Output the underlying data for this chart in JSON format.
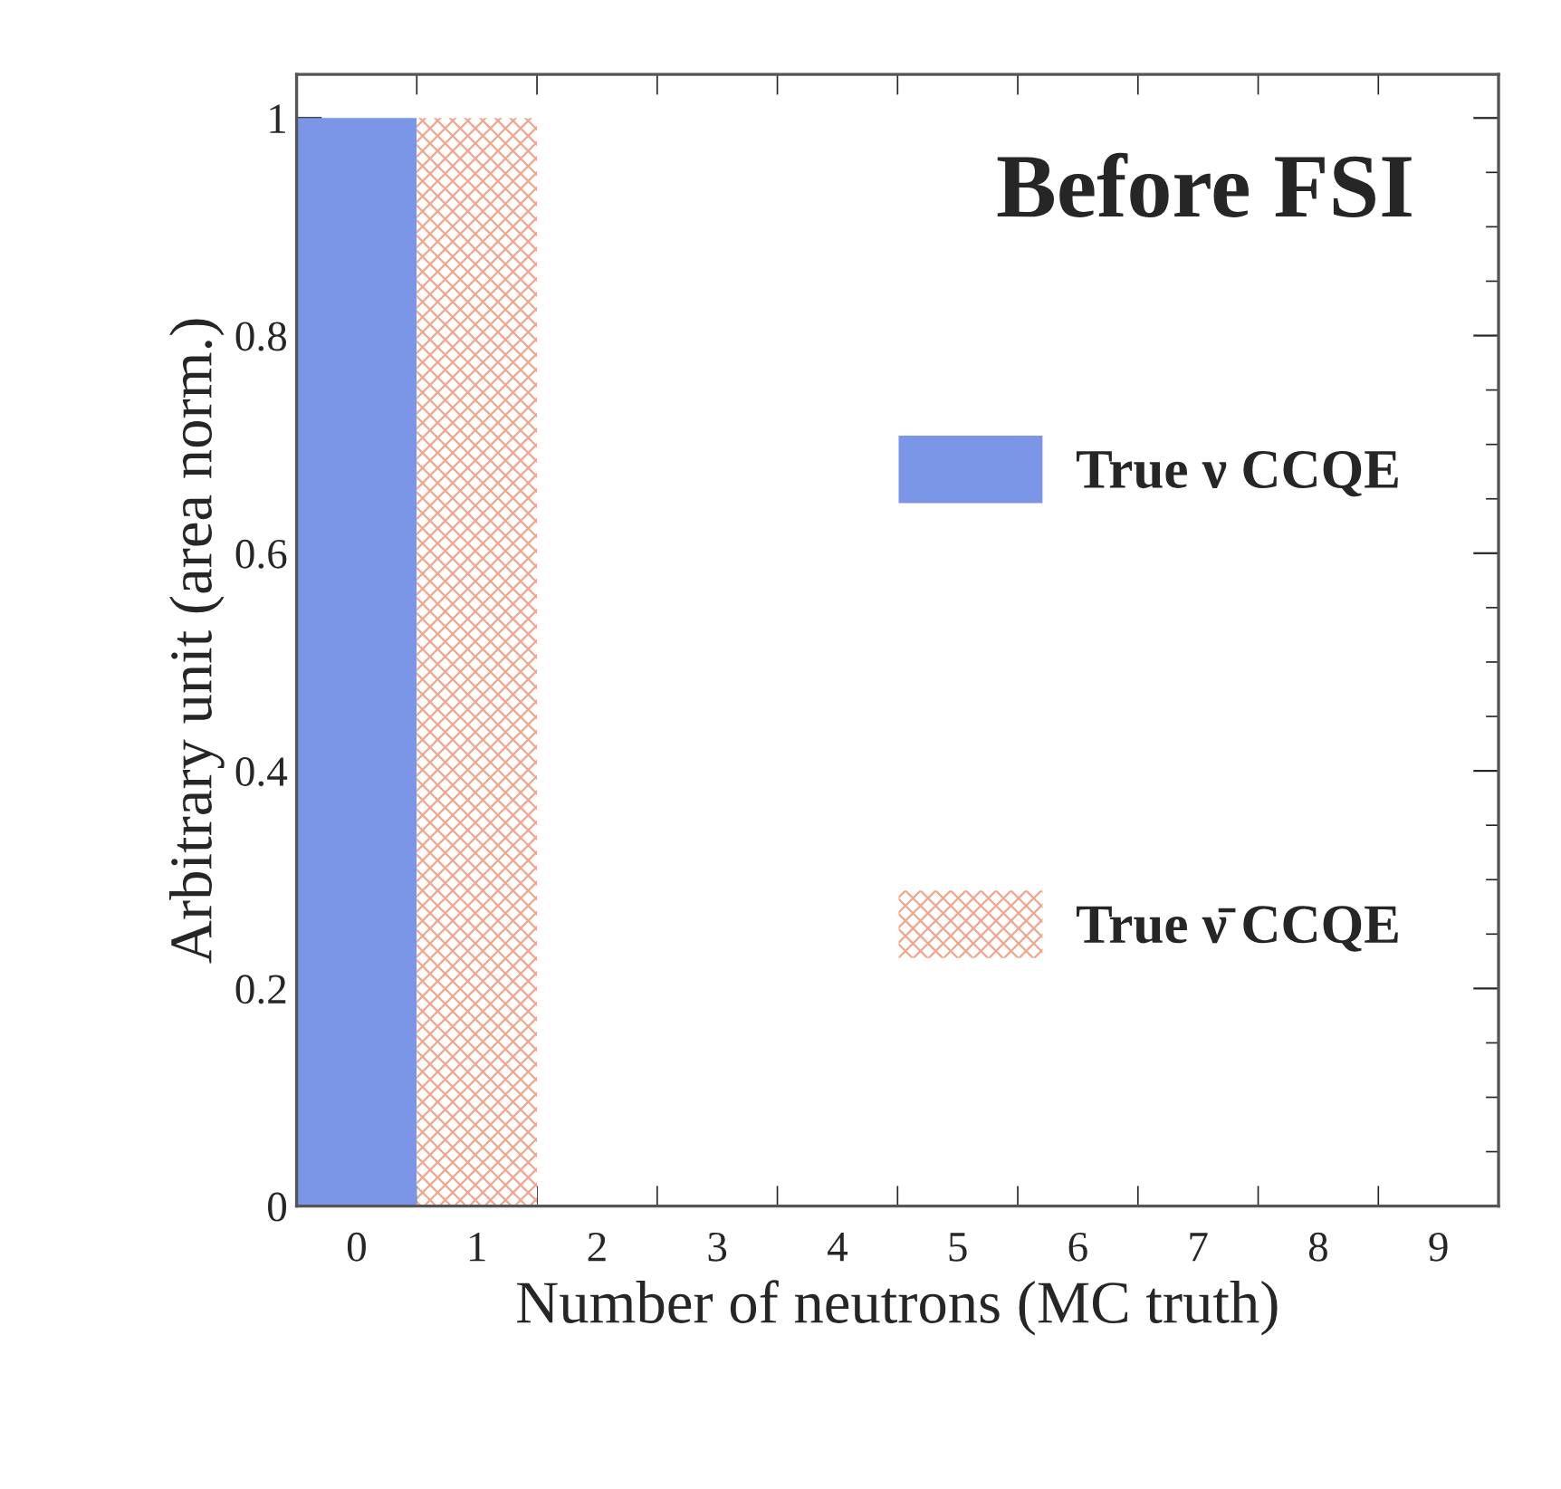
{
  "chart_data": {
    "type": "bar",
    "title": "Before FSI",
    "xlabel": "Number of neutrons (MC truth)",
    "ylabel": "Arbitrary unit (area norm.)",
    "categories": [
      "0",
      "1",
      "2",
      "3",
      "4",
      "5",
      "6",
      "7",
      "8",
      "9"
    ],
    "series": [
      {
        "name": "True ν CCQE",
        "color": "#7b96e6",
        "values": [
          1,
          0,
          0,
          0,
          0,
          0,
          0,
          0,
          0,
          0
        ]
      },
      {
        "name": "True ν̄ CCQE",
        "color": "#f0a58c",
        "values": [
          0,
          1,
          0,
          0,
          0,
          0,
          0,
          0,
          0,
          0
        ]
      }
    ],
    "ylim": [
      0,
      1.04
    ],
    "yticks": [
      0,
      0.2,
      0.4,
      0.6,
      0.8,
      1
    ],
    "legend": "right",
    "grid": false
  }
}
